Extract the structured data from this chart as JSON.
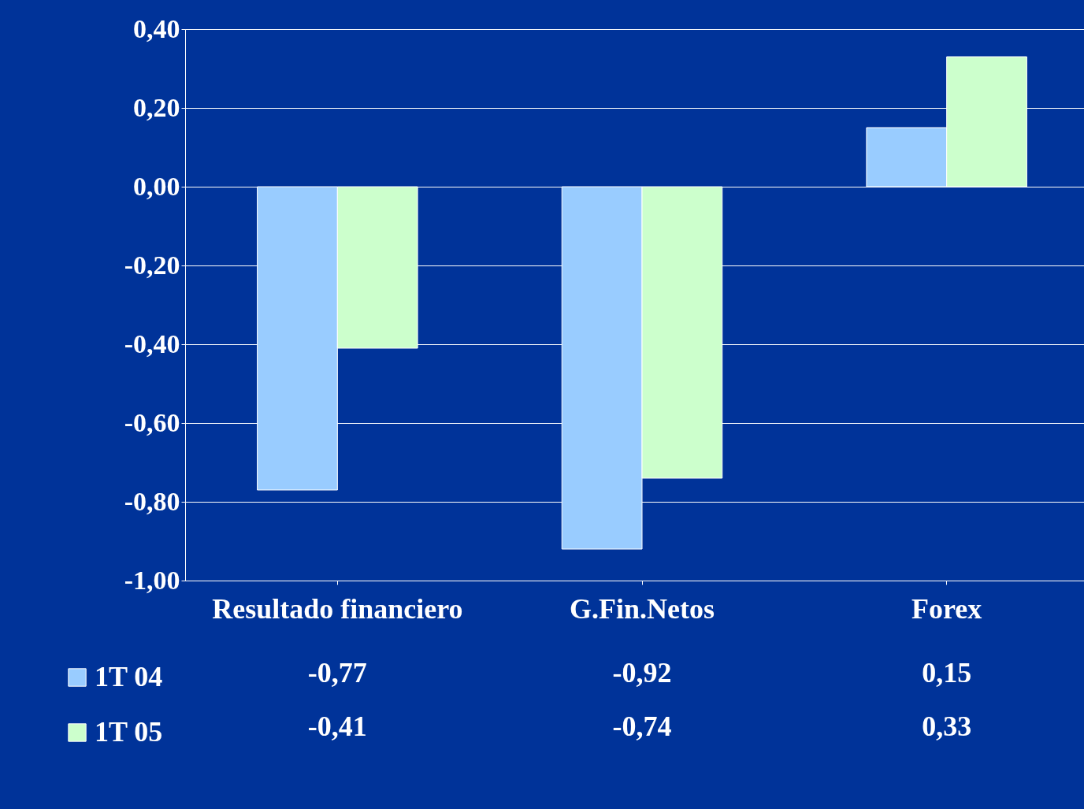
{
  "chart_data": {
    "type": "bar",
    "categories": [
      "Resultado financiero",
      "G.Fin.Netos",
      "Forex"
    ],
    "series": [
      {
        "name": "1T 04",
        "color": "#99ccff",
        "values": [
          -0.77,
          -0.92,
          0.15
        ],
        "value_labels": [
          "-0,77",
          "-0,92",
          "0,15"
        ]
      },
      {
        "name": "1T 05",
        "color": "#ccffcc",
        "values": [
          -0.41,
          -0.74,
          0.33
        ],
        "value_labels": [
          "-0,41",
          "-0,74",
          "0,33"
        ]
      }
    ],
    "ylim": [
      -1,
      0.4
    ],
    "yticks": [
      {
        "value": -1,
        "label": "-1,00"
      },
      {
        "value": -0.8,
        "label": "-0,80"
      },
      {
        "value": -0.6,
        "label": "-0,60"
      },
      {
        "value": -0.4,
        "label": "-0,40"
      },
      {
        "value": -0.2,
        "label": "-0,20"
      },
      {
        "value": 0,
        "label": "0,00"
      },
      {
        "value": 0.2,
        "label": "0,20"
      },
      {
        "value": 0.4,
        "label": "0,40"
      }
    ],
    "grid": "y",
    "legend": "bottom left",
    "data_labels": true
  }
}
